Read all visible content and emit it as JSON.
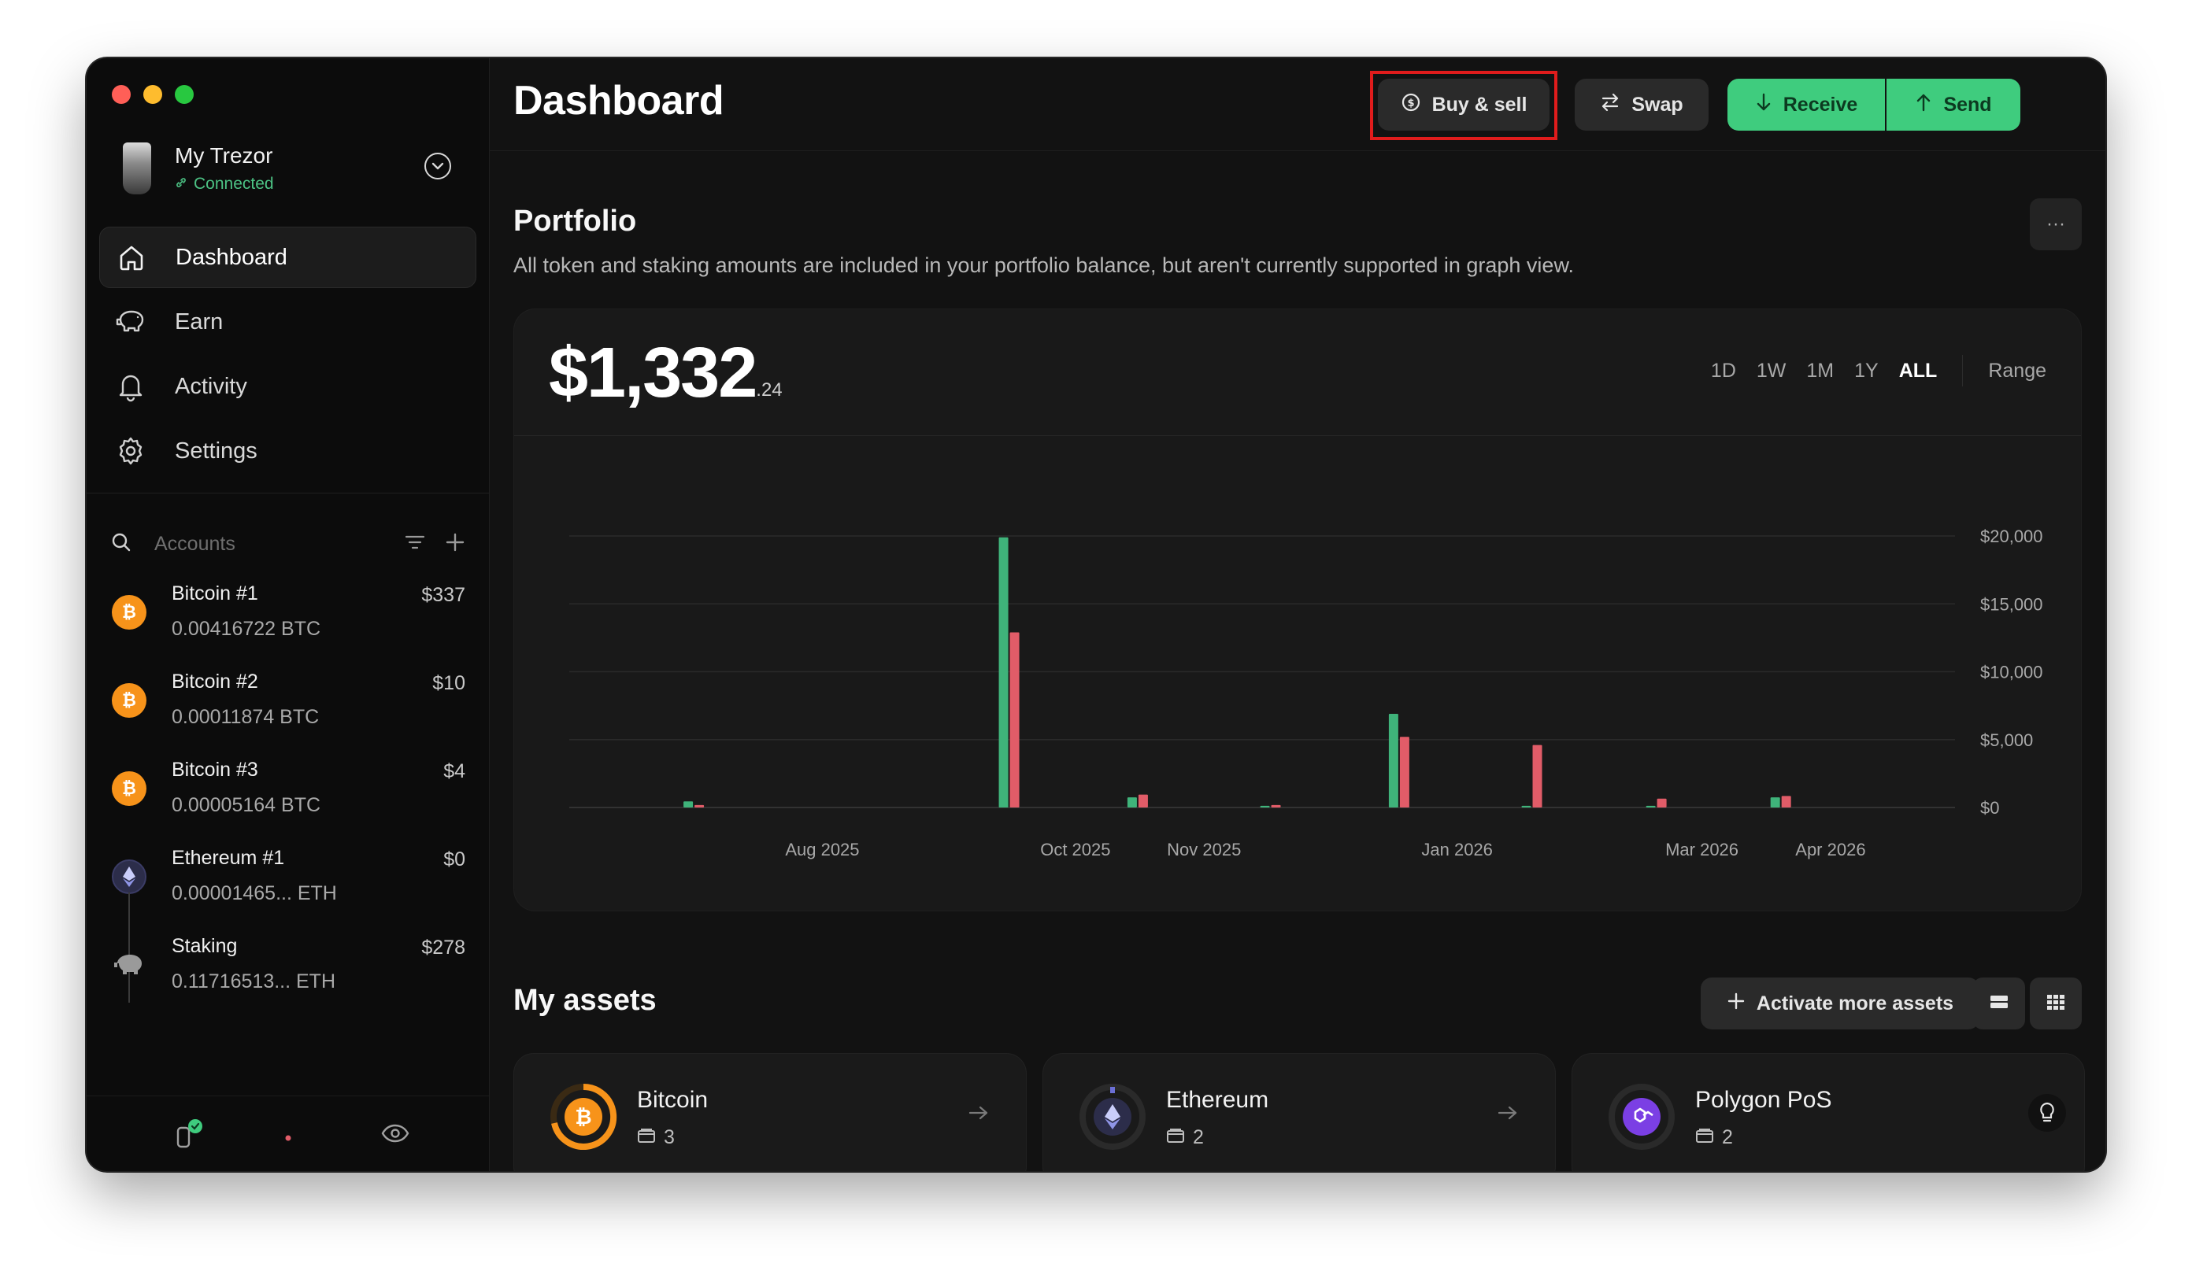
{
  "device": {
    "name": "My Trezor",
    "status": "Connected"
  },
  "nav": [
    {
      "label": "Dashboard",
      "icon": "home-icon"
    },
    {
      "label": "Earn",
      "icon": "piggy-bank-icon"
    },
    {
      "label": "Activity",
      "icon": "bell-icon"
    },
    {
      "label": "Settings",
      "icon": "gear-icon"
    }
  ],
  "accounts_header": {
    "label": "Accounts"
  },
  "accounts": [
    {
      "name": "Bitcoin #1",
      "amount": "0.00416722 BTC",
      "fiat": "$337",
      "coin": "bitcoin-icon"
    },
    {
      "name": "Bitcoin #2",
      "amount": "0.00011874 BTC",
      "fiat": "$10",
      "coin": "bitcoin-icon"
    },
    {
      "name": "Bitcoin #3",
      "amount": "0.00005164 BTC",
      "fiat": "$4",
      "coin": "bitcoin-icon"
    },
    {
      "name": "Ethereum #1",
      "amount": "0.00001465... ETH",
      "fiat": "$0",
      "coin": "ethereum-icon"
    },
    {
      "name": "Staking",
      "amount": "0.11716513... ETH",
      "fiat": "$278",
      "coin": "piggy-bank-icon"
    }
  ],
  "header": {
    "title": "Dashboard",
    "buy_sell": "Buy & sell",
    "swap": "Swap",
    "receive": "Receive",
    "send": "Send"
  },
  "portfolio": {
    "title": "Portfolio",
    "description": "All token and staking amounts are included in your portfolio balance, but aren't currently supported in graph view.",
    "balance_main": "$1,332",
    "balance_cents": ".24",
    "ranges": [
      "1D",
      "1W",
      "1M",
      "1Y",
      "ALL"
    ],
    "selected_range": "ALL",
    "custom_range": "Range",
    "more": "···"
  },
  "chart_data": {
    "type": "bar",
    "y_ticks": [
      "$20,000",
      "$15,000",
      "$10,000",
      "$5,000",
      "$0"
    ],
    "ylim": [
      0,
      20000
    ],
    "x_ticks": [
      "Aug 2025",
      "Oct 2025",
      "Nov 2025",
      "Jan 2026",
      "Mar 2026",
      "Apr 2026"
    ],
    "x_range": [
      "2025-06-15",
      "2026-05-15"
    ],
    "series": [
      {
        "color": "#3fb37a",
        "points": [
          {
            "x": "2025-07-15",
            "y": 450
          },
          {
            "x": "2025-09-29",
            "y": 19900
          },
          {
            "x": "2025-10-30",
            "y": 750
          },
          {
            "x": "2025-12-01",
            "y": 120
          },
          {
            "x": "2026-01-01",
            "y": 6900
          },
          {
            "x": "2026-02-02",
            "y": 120
          },
          {
            "x": "2026-03-04",
            "y": 120
          },
          {
            "x": "2026-04-03",
            "y": 750
          }
        ]
      },
      {
        "color": "#e15c68",
        "points": [
          {
            "x": "2025-07-15",
            "y": 180
          },
          {
            "x": "2025-09-29",
            "y": 12900
          },
          {
            "x": "2025-10-30",
            "y": 950
          },
          {
            "x": "2025-12-01",
            "y": 180
          },
          {
            "x": "2026-01-01",
            "y": 5200
          },
          {
            "x": "2026-02-02",
            "y": 4600
          },
          {
            "x": "2026-03-04",
            "y": 650
          },
          {
            "x": "2026-04-03",
            "y": 850
          }
        ]
      }
    ],
    "grid": true
  },
  "assets": {
    "title": "My assets",
    "activate": "Activate more assets",
    "items": [
      {
        "name": "Bitcoin",
        "count": "3"
      },
      {
        "name": "Ethereum",
        "count": "2"
      },
      {
        "name": "Polygon PoS",
        "count": "2"
      }
    ]
  },
  "colors": {
    "green": "#3fcc7e",
    "red": "#e15c68",
    "highlight": "#e01c1c"
  }
}
